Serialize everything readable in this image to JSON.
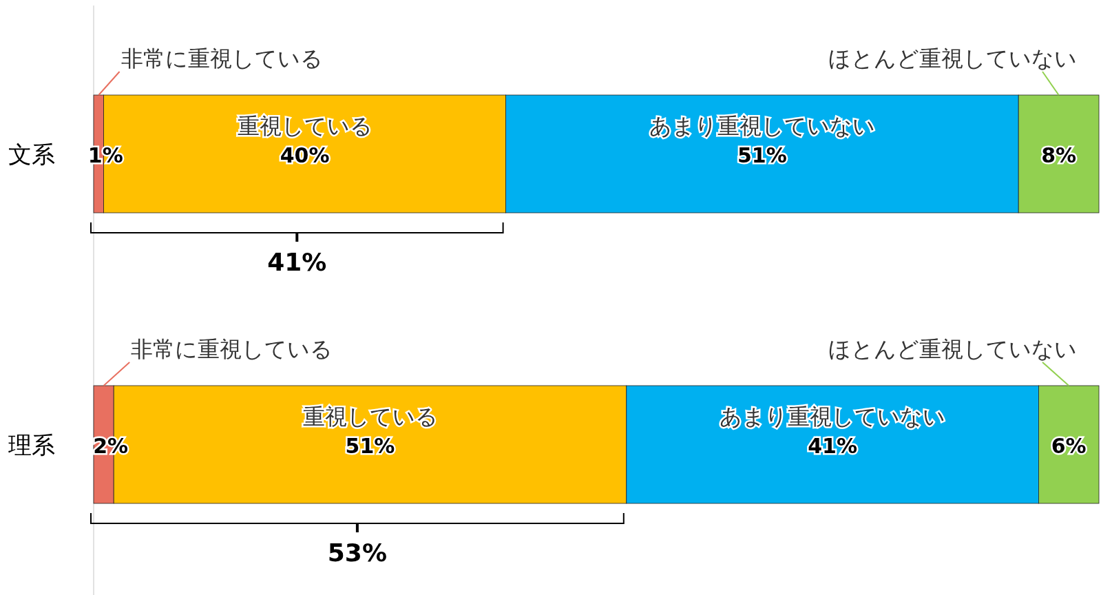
{
  "chart_data": {
    "type": "bar",
    "orientation": "horizontal",
    "stacked": true,
    "categories": [
      "文系",
      "理系"
    ],
    "series": [
      {
        "name": "非常に重視している",
        "color": "#e87060",
        "values": [
          1,
          2
        ],
        "value_labels": [
          "1%",
          "2%"
        ]
      },
      {
        "name": "重視している",
        "color": "#ffc000",
        "values": [
          40,
          51
        ],
        "value_labels": [
          "40%",
          "51%"
        ]
      },
      {
        "name": "あまり重視していない",
        "color": "#00b0f0",
        "values": [
          51,
          41
        ],
        "value_labels": [
          "51%",
          "41%"
        ]
      },
      {
        "name": "ほとんど重視していない",
        "color": "#92d050",
        "values": [
          8,
          6
        ],
        "value_labels": [
          "8%",
          "6%"
        ]
      }
    ],
    "tick_labels": "y",
    "annotations": [
      "41%",
      "53%"
    ]
  }
}
